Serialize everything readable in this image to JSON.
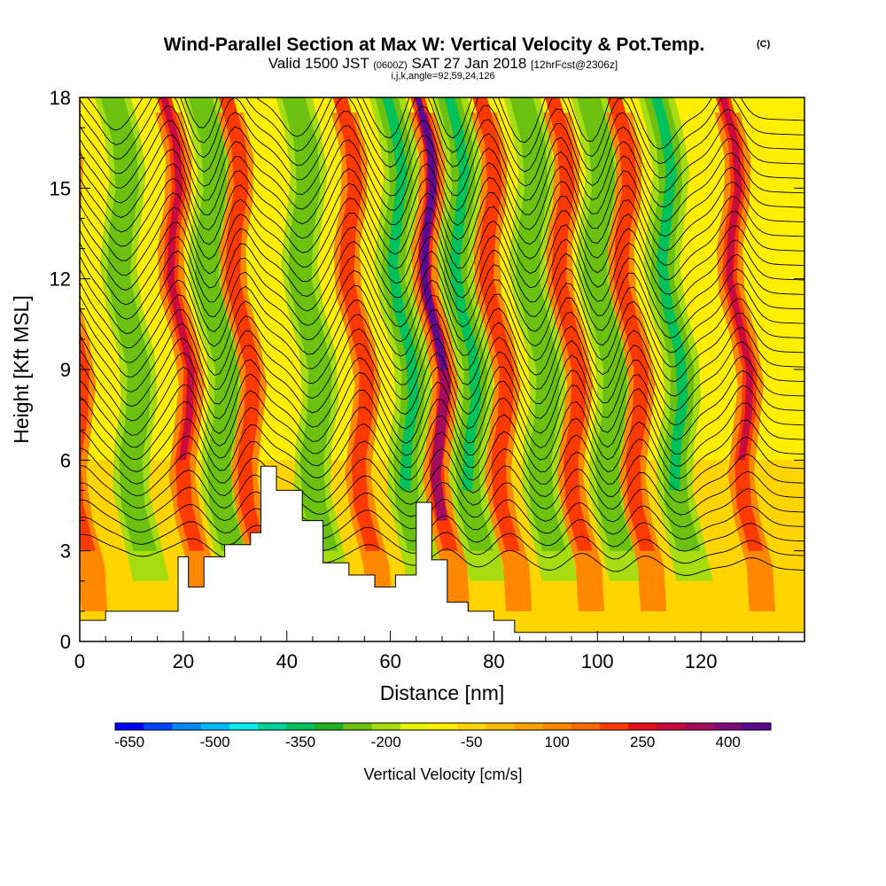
{
  "title": {
    "main": "Wind-Parallel Section at Max W: Vertical Velocity & Pot.Temp.",
    "copyright": "(C)",
    "valid_prefix": "Valid 1500 JST",
    "valid_utc": "(0600Z)",
    "valid_date": "SAT 27 Jan 2018",
    "forecast": "[12hrFcst@2306z]",
    "grid_info": "i,j,k,angle=92,59,24,126"
  },
  "chart_data": {
    "type": "heatmap",
    "xlabel": "Distance [nm]",
    "ylabel": "Height [Kft MSL]",
    "xlim": [
      0,
      140
    ],
    "ylim": [
      0,
      18
    ],
    "xticks": [
      "0",
      "20",
      "40",
      "60",
      "80",
      "100",
      "120"
    ],
    "yticks": [
      "0",
      "3",
      "6",
      "9",
      "12",
      "15",
      "18"
    ],
    "colorbar": {
      "title": "Vertical Velocity [cm/s]",
      "labels": [
        "-650",
        "-500",
        "-350",
        "-200",
        "-50",
        "100",
        "250",
        "400"
      ],
      "colors": [
        "#0000ff",
        "#0044ff",
        "#0088ff",
        "#00bbff",
        "#00eeee",
        "#00d49a",
        "#00c05a",
        "#20b020",
        "#6cc010",
        "#a6dc10",
        "#e6f400",
        "#ffee00",
        "#ffd400",
        "#ffbb00",
        "#ffa200",
        "#ff8800",
        "#ff6a00",
        "#ff3a00",
        "#e6101c",
        "#c80a3c",
        "#a60a5a",
        "#800a78",
        "#5a0a8e"
      ]
    },
    "updraft_bands_nm": [
      2,
      23,
      35,
      57,
      72,
      84,
      98,
      110,
      131
    ],
    "downdraft_bands_nm": [
      13,
      30,
      48,
      66,
      78,
      92,
      105,
      118
    ],
    "peak_updraft_nm": 72,
    "terrain_kft": [
      {
        "x": 0,
        "h": 0.7
      },
      {
        "x": 5,
        "h": 1.0
      },
      {
        "x": 15,
        "h": 1.0
      },
      {
        "x": 19,
        "h": 2.8
      },
      {
        "x": 21,
        "h": 1.8
      },
      {
        "x": 24,
        "h": 2.8
      },
      {
        "x": 28,
        "h": 3.2
      },
      {
        "x": 33,
        "h": 3.6
      },
      {
        "x": 35,
        "h": 5.8
      },
      {
        "x": 38,
        "h": 5.0
      },
      {
        "x": 43,
        "h": 4.0
      },
      {
        "x": 47,
        "h": 2.6
      },
      {
        "x": 52,
        "h": 2.2
      },
      {
        "x": 57,
        "h": 1.8
      },
      {
        "x": 61,
        "h": 2.2
      },
      {
        "x": 65,
        "h": 4.6
      },
      {
        "x": 68,
        "h": 2.7
      },
      {
        "x": 71,
        "h": 1.3
      },
      {
        "x": 75,
        "h": 1.0
      },
      {
        "x": 80,
        "h": 0.7
      },
      {
        "x": 84,
        "h": 0.3
      },
      {
        "x": 140,
        "h": 0.3
      }
    ],
    "theta_contour_count": 32,
    "grid": false,
    "legend_position": "bottom"
  }
}
